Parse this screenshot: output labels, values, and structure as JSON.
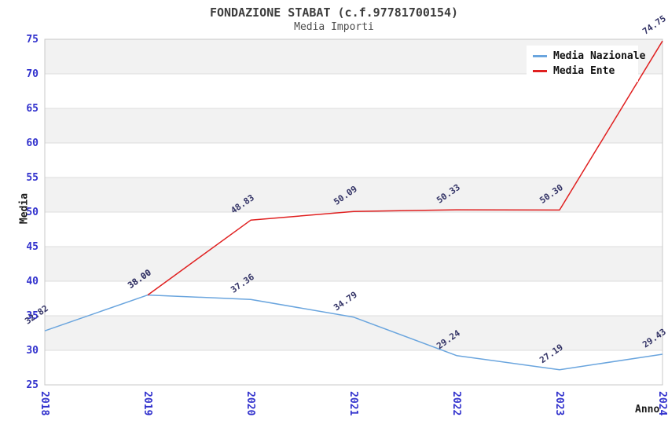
{
  "header": {
    "title": "FONDAZIONE STABAT (c.f.97781700154)",
    "subtitle": "Media Importi"
  },
  "chart_data": {
    "type": "line",
    "x": [
      2018,
      2019,
      2020,
      2021,
      2022,
      2023,
      2024
    ],
    "series": [
      {
        "name": "Media Nazionale",
        "color": "#6aa5de",
        "values": [
          32.82,
          38.0,
          37.36,
          34.79,
          29.24,
          27.19,
          29.43
        ]
      },
      {
        "name": "Media Ente",
        "color": "#e02020",
        "values": [
          null,
          38.0,
          48.83,
          50.09,
          50.33,
          50.3,
          74.75
        ]
      }
    ],
    "xlabel": "Anno",
    "ylabel": "Media",
    "ylim": [
      25,
      75
    ],
    "ytick_step": 5,
    "grid": true,
    "banded_background": true,
    "legend_position": "top-right",
    "data_labels_decimals": 2,
    "colors": {
      "tick_label": "#3232cd",
      "data_label": "#333366",
      "band": "#f2f2f2",
      "gridline": "#dcdcdc",
      "spine": "#c8c8c8",
      "title": "#3d3d3d"
    }
  }
}
